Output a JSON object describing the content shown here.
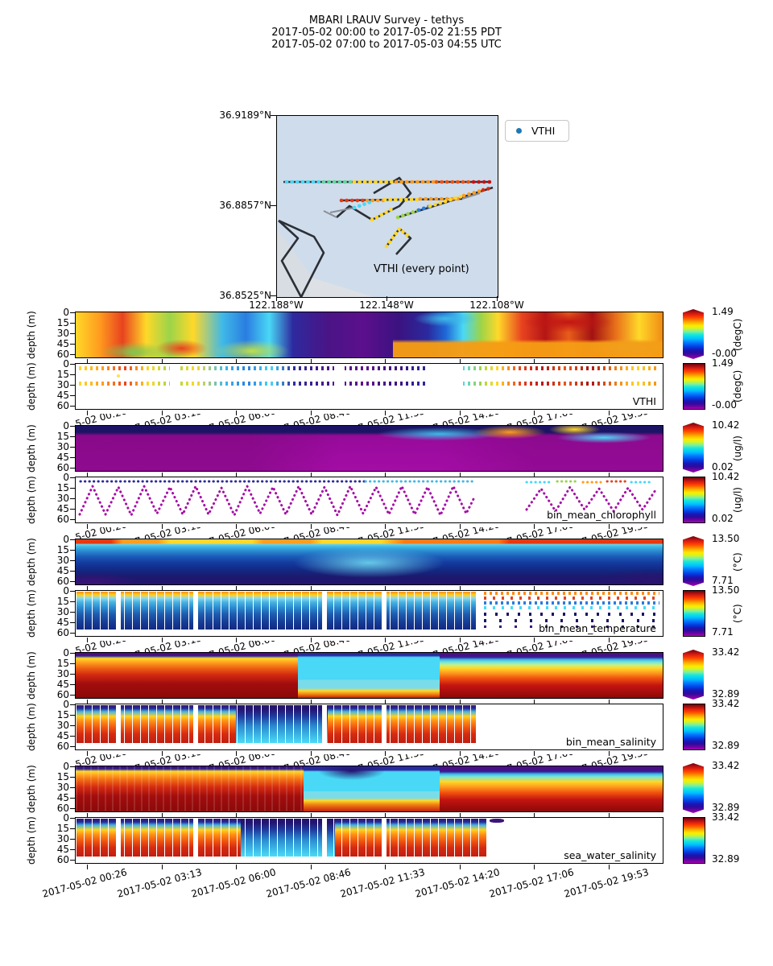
{
  "title": {
    "line1": "MBARI LRAUV Survey - tethys",
    "line2": "2017-05-02 00:00  to  2017-05-02 21:55 PDT",
    "line3": "2017-05-02 07:00  to  2017-05-03 04:55 UTC"
  },
  "map": {
    "lat_labels": [
      "36.9189°N",
      "36.8857°N",
      "36.8525°N"
    ],
    "lon_labels": [
      "122.188°W",
      "122.148°W",
      "122.108°W"
    ],
    "legend_label": "VTHI",
    "legend_marker_color": "#1f77b4",
    "annotation": "VTHI (every point)",
    "sea_color": "#cfdcec"
  },
  "axes": {
    "ylabel": "depth (m)",
    "yticks": [
      "0",
      "15",
      "30",
      "45",
      "60"
    ],
    "xticklabels": [
      "2017-05-02 00:26",
      "2017-05-02 03:13",
      "2017-05-02 06:00",
      "2017-05-02 08:46",
      "2017-05-02 11:33",
      "2017-05-02 14:20",
      "2017-05-02 17:06",
      "2017-05-02 19:53"
    ]
  },
  "panels": [
    {
      "variable": "VTHI",
      "style": "contour",
      "label": "",
      "colorbar": {
        "max": "1.49",
        "min": "-0.00",
        "unit": "(degC)"
      }
    },
    {
      "variable": "VTHI",
      "style": "scatter",
      "label": "VTHI",
      "colorbar": {
        "max": "1.49",
        "min": "-0.00",
        "unit": "(degC)"
      }
    },
    {
      "variable": "bin_mean_chlorophyll",
      "style": "contour",
      "label": "",
      "colorbar": {
        "max": "10.42",
        "min": "0.02",
        "unit": "(ug/l)"
      }
    },
    {
      "variable": "bin_mean_chlorophyll",
      "style": "scatter",
      "label": "bin_mean_chlorophyll",
      "colorbar": {
        "max": "10.42",
        "min": "0.02",
        "unit": "(ug/l)"
      }
    },
    {
      "variable": "bin_mean_temperature",
      "style": "contour",
      "label": "",
      "colorbar": {
        "max": "13.50",
        "min": "7.71",
        "unit": "(°C)"
      }
    },
    {
      "variable": "bin_mean_temperature",
      "style": "scatter",
      "label": "bin_mean_temperature",
      "colorbar": {
        "max": "13.50",
        "min": "7.71",
        "unit": "(°C)"
      }
    },
    {
      "variable": "bin_mean_salinity",
      "style": "contour",
      "label": "",
      "colorbar": {
        "max": "33.42",
        "min": "32.89",
        "unit": ""
      }
    },
    {
      "variable": "bin_mean_salinity",
      "style": "scatter",
      "label": "bin_mean_salinity",
      "colorbar": {
        "max": "33.42",
        "min": "32.89",
        "unit": ""
      }
    },
    {
      "variable": "sea_water_salinity",
      "style": "contour",
      "label": "",
      "colorbar": {
        "max": "33.42",
        "min": "32.89",
        "unit": ""
      }
    },
    {
      "variable": "sea_water_salinity",
      "style": "scatter",
      "label": "sea_water_salinity",
      "colorbar": {
        "max": "33.42",
        "min": "32.89",
        "unit": ""
      }
    }
  ],
  "chart_data": {
    "type": "heatmap",
    "title": "MBARI LRAUV Survey - tethys",
    "time_range_pdt": "2017-05-02 00:00 to 2017-05-02 21:55 PDT",
    "time_range_utc": "2017-05-02 07:00 to 2017-05-03 04:55 UTC",
    "x_ticklabels": [
      "2017-05-02 00:26",
      "2017-05-02 03:13",
      "2017-05-02 06:00",
      "2017-05-02 08:46",
      "2017-05-02 11:33",
      "2017-05-02 14:20",
      "2017-05-02 17:06",
      "2017-05-02 19:53"
    ],
    "ylabel": "depth (m)",
    "yticks": [
      0,
      15,
      30,
      45,
      60
    ],
    "y_axis_inverted": true,
    "colormap": "rainbow: magenta/purple = low, blue/cyan/green/yellow/orange = mid, dark red = high",
    "map": {
      "lat_ticks": [
        36.9189,
        36.8857,
        36.8525
      ],
      "lon_ticks": [
        -122.188,
        -122.148,
        -122.108
      ],
      "legend": [
        "VTHI"
      ],
      "annotation": "VTHI (every point)",
      "description": "AUV track lines with colored VTHI sample points over Monterey Bay coastal map"
    },
    "panels": [
      {
        "variable": "VTHI",
        "render": "contourf",
        "cbar_min": -0.0,
        "cbar_max": 1.49,
        "unit": "degC",
        "extend": "both"
      },
      {
        "variable": "VTHI",
        "render": "scatter",
        "cbar_min": -0.0,
        "cbar_max": 1.49,
        "unit": "degC",
        "note": "points in two shallow bands near 2 m and 30 m"
      },
      {
        "variable": "bin_mean_chlorophyll",
        "render": "contourf",
        "cbar_min": 0.02,
        "cbar_max": 10.42,
        "unit": "ug/l",
        "extend": "both"
      },
      {
        "variable": "bin_mean_chlorophyll",
        "render": "scatter",
        "cbar_min": 0.02,
        "cbar_max": 10.42,
        "unit": "ug/l",
        "note": "yo-yo sawtooth profile dots, mostly low (magenta) with higher values near surface"
      },
      {
        "variable": "bin_mean_temperature",
        "render": "contourf",
        "cbar_min": 7.71,
        "cbar_max": 13.5,
        "unit": "degC",
        "extend": "both",
        "note": "warm surface layer over cold deep water, coldest mid-survey"
      },
      {
        "variable": "bin_mean_temperature",
        "render": "scatter",
        "cbar_min": 7.71,
        "cbar_max": 13.5,
        "unit": "degC",
        "note": "dense profiles until ~14:20, sparse points afterwards"
      },
      {
        "variable": "bin_mean_salinity",
        "render": "contourf",
        "cbar_min": 32.89,
        "cbar_max": 33.42,
        "unit": "",
        "extend": "both",
        "note": "fresh surface band, salty deep water; stratified bands after ~14:20"
      },
      {
        "variable": "bin_mean_salinity",
        "render": "scatter",
        "cbar_min": 32.89,
        "cbar_max": 33.42,
        "unit": "",
        "note": "dense profiles until ~14:20, blank afterwards"
      },
      {
        "variable": "sea_water_salinity",
        "render": "contourf",
        "cbar_min": 32.89,
        "cbar_max": 33.42,
        "unit": "",
        "extend": "both"
      },
      {
        "variable": "sea_water_salinity",
        "render": "scatter",
        "cbar_min": 32.89,
        "cbar_max": 33.42,
        "unit": "",
        "note": "dense profiles until ~14:20, blank afterwards"
      }
    ]
  }
}
